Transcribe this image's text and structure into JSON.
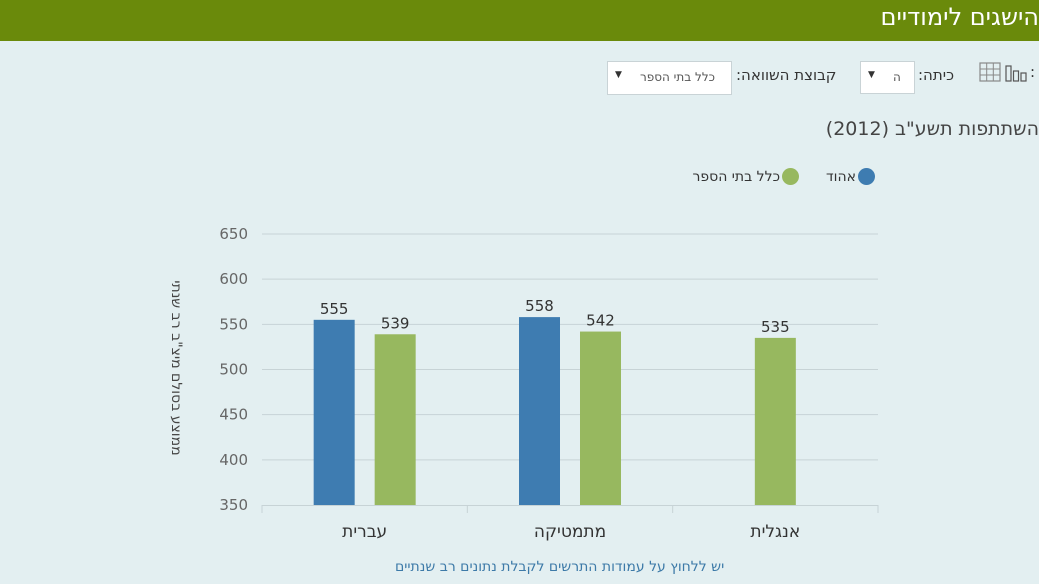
{
  "header": {
    "title": "הישגים לימודיים"
  },
  "toolbar": {
    "grade_label": "כיתה:",
    "grade_value": "ה",
    "compare_label": "קבוצת השוואה:",
    "compare_value": "כלל בתי הספר",
    "chart_view_icon": "bar-chart-icon",
    "table_view_icon": "table-icon"
  },
  "colors": {
    "header": "#6a8a0b",
    "school": "#3e7cb1",
    "all_schools": "#97b85f",
    "background": "#e3eff1"
  },
  "chart_data": {
    "type": "bar",
    "title": "השתתפות תשע\"ב (2012)",
    "ylabel": "ממוצע בסולם מיצ\"ב רב שנתי",
    "xlabel": "",
    "ylim": [
      350,
      650
    ],
    "yticks": [
      350,
      400,
      450,
      500,
      550,
      600,
      650
    ],
    "grid": true,
    "legend": "top-right",
    "categories": [
      "עברית",
      "מתמטיקה",
      "אנגלית"
    ],
    "series": [
      {
        "name": "אהוד",
        "color": "#3e7cb1",
        "values": [
          555,
          558,
          null
        ]
      },
      {
        "name": "כלל בתי הספר",
        "color": "#97b85f",
        "values": [
          539,
          542,
          535
        ]
      }
    ],
    "note": "יש ללחוץ על עמודות התרשים לקבלת נתונים רב שנתיים"
  }
}
